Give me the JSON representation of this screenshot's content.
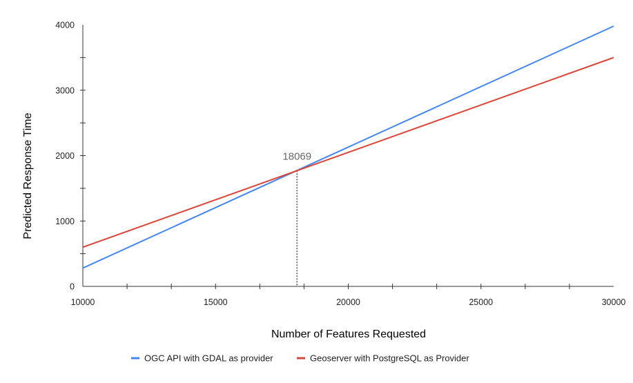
{
  "chart_data": {
    "type": "line",
    "title": "",
    "xlabel": "Number of Features Requested",
    "ylabel": "Predicted Response Time",
    "xlim": [
      10000,
      30000
    ],
    "ylim": [
      0,
      4000
    ],
    "x_ticks": [
      10000,
      15000,
      20000,
      25000,
      30000
    ],
    "x_tick_labels": [
      "10000",
      "15000",
      "20000",
      "25000",
      "30000"
    ],
    "y_ticks": [
      0,
      1000,
      2000,
      3000,
      4000
    ],
    "y_tick_labels": [
      "0",
      "1000",
      "2000",
      "3000",
      "4000"
    ],
    "grid": false,
    "legend_position": "bottom",
    "series": [
      {
        "name": "OGC API with GDAL as provider",
        "color": "#4285f4",
        "x": [
          10000,
          30000
        ],
        "y": [
          280,
          3980
        ]
      },
      {
        "name": "Geoserver with PostgreSQL as Provider",
        "color": "#db4437",
        "x": [
          10000,
          30000
        ],
        "y": [
          600,
          3500
        ]
      }
    ],
    "annotations": [
      {
        "text": "18069",
        "x": 18069,
        "y": 1770,
        "style": "dotted-vertical-line",
        "color": "#555555"
      }
    ]
  }
}
